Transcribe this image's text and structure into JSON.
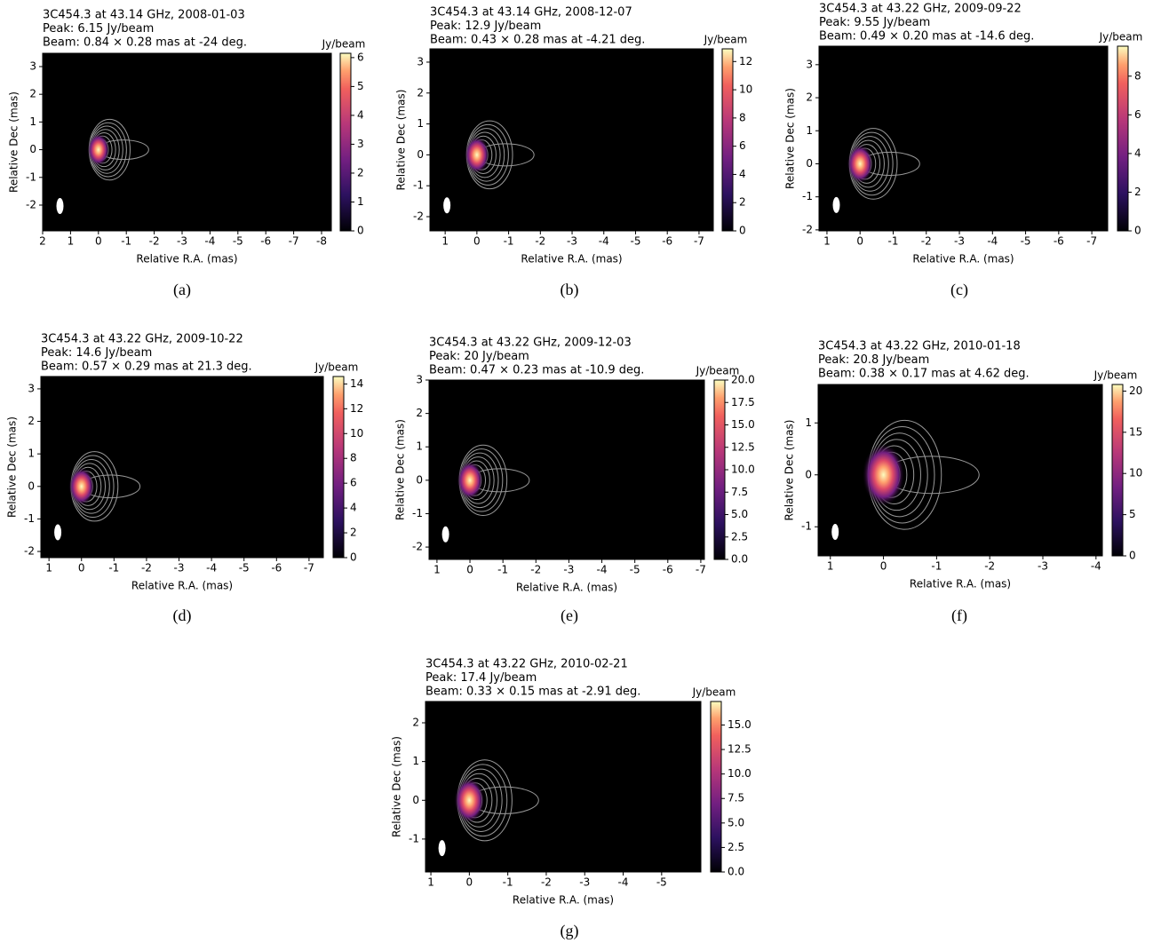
{
  "chart_data": [
    {
      "type": "image",
      "title": [
        "3C454.3 at 43.14 GHz, 2008-01-03",
        "Peak: 6.15 Jy/beam",
        "Beam: 0.84 × 0.28 mas at -24 deg."
      ],
      "xlabel": "Relative R.A. (mas)",
      "ylabel": "Relative Dec (mas)",
      "xlim": [
        2,
        -8.35
      ],
      "xticks": [
        2,
        1,
        0,
        -1,
        -2,
        -3,
        -4,
        -5,
        -6,
        -7,
        -8
      ],
      "ylim": [
        -2.93,
        3.48
      ],
      "yticks": [
        -2,
        -1,
        0,
        1,
        2,
        3
      ],
      "colorbar_label": "Jy/beam",
      "clim": [
        0,
        6.15
      ],
      "cticks": [
        0,
        1,
        2,
        3,
        4,
        5,
        6
      ],
      "caption": "(a)"
    },
    {
      "type": "image",
      "title": [
        "3C454.3 at 43.14 GHz, 2008-12-07",
        "Peak: 12.9 Jy/beam",
        "Beam: 0.43 × 0.28 mas at -4.21 deg."
      ],
      "xlabel": "Relative R.A. (mas)",
      "ylabel": "Relative Dec (mas)",
      "xlim": [
        1.48,
        -7.45
      ],
      "xticks": [
        1,
        0,
        -1,
        -2,
        -3,
        -4,
        -5,
        -6,
        -7
      ],
      "ylim": [
        -2.46,
        3.43
      ],
      "yticks": [
        -2,
        -1,
        0,
        1,
        2,
        3
      ],
      "colorbar_label": "Jy/beam",
      "clim": [
        0,
        12.9
      ],
      "cticks": [
        0,
        2,
        4,
        6,
        8,
        10,
        12
      ],
      "caption": "(b)"
    },
    {
      "type": "image",
      "title": [
        "3C454.3 at 43.22 GHz, 2009-09-22",
        "Peak: 9.55 Jy/beam",
        "Beam: 0.49 × 0.20 mas at -14.6 deg."
      ],
      "xlabel": "Relative R.A. (mas)",
      "ylabel": "Relative Dec (mas)",
      "xlim": [
        1.24,
        -7.48
      ],
      "xticks": [
        1,
        0,
        -1,
        -2,
        -3,
        -4,
        -5,
        -6,
        -7
      ],
      "ylim": [
        -2.03,
        3.56
      ],
      "yticks": [
        -2,
        -1,
        0,
        1,
        2,
        3
      ],
      "colorbar_label": "Jy/beam",
      "clim": [
        0,
        9.55
      ],
      "cticks": [
        0,
        2,
        4,
        6,
        8
      ],
      "caption": "(c)"
    },
    {
      "type": "image",
      "title": [
        "3C454.3 at 43.22 GHz, 2009-10-22",
        "Peak: 14.6 Jy/beam",
        "Beam: 0.57 × 0.29 mas at 21.3 deg."
      ],
      "xlabel": "Relative R.A. (mas)",
      "ylabel": "Relative Dec (mas)",
      "xlim": [
        1.25,
        -7.44
      ],
      "xticks": [
        1,
        0,
        -1,
        -2,
        -3,
        -4,
        -5,
        -6,
        -7
      ],
      "ylim": [
        -2.19,
        3.38
      ],
      "yticks": [
        -2,
        -1,
        0,
        1,
        2,
        3
      ],
      "colorbar_label": "Jy/beam",
      "clim": [
        0,
        14.6
      ],
      "cticks": [
        0,
        2,
        4,
        6,
        8,
        10,
        12,
        14
      ],
      "caption": "(d)"
    },
    {
      "type": "image",
      "title": [
        "3C454.3 at 43.22 GHz, 2009-12-03",
        "Peak: 20 Jy/beam",
        "Beam: 0.47 × 0.23 mas at -10.9 deg."
      ],
      "xlabel": "Relative R.A. (mas)",
      "ylabel": "Relative Dec (mas)",
      "xlim": [
        1.24,
        -7.11
      ],
      "xticks": [
        1,
        0,
        -1,
        -2,
        -3,
        -4,
        -5,
        -6,
        -7
      ],
      "ylim": [
        -2.37,
        3.0
      ],
      "yticks": [
        -2,
        -1,
        0,
        1,
        2,
        3
      ],
      "colorbar_label": "Jy/beam",
      "clim": [
        0,
        20
      ],
      "cticks": [
        {
          "value": 0,
          "label": "0.0"
        },
        2.5,
        {
          "value": 5,
          "label": "5.0"
        },
        7.5,
        {
          "value": 10,
          "label": "10.0"
        },
        12.5,
        {
          "value": 15,
          "label": "15.0"
        },
        17.5,
        {
          "value": 20,
          "label": "20.0"
        }
      ],
      "caption": "(e)"
    },
    {
      "type": "image",
      "title": [
        "3C454.3 at 43.22 GHz, 2010-01-18",
        "Peak: 20.8 Jy/beam",
        "Beam: 0.38 × 0.17 mas at 4.62 deg."
      ],
      "xlabel": "Relative R.A. (mas)",
      "ylabel": "Relative Dec (mas)",
      "xlim": [
        1.23,
        -4.12
      ],
      "xticks": [
        1,
        0,
        -1,
        -2,
        -3,
        -4
      ],
      "ylim": [
        -1.56,
        1.74
      ],
      "yticks": [
        -1,
        0,
        1
      ],
      "colorbar_label": "Jy/beam",
      "clim": [
        0,
        20.8
      ],
      "cticks": [
        0,
        5,
        10,
        15,
        20
      ],
      "caption": "(f)"
    },
    {
      "type": "image",
      "title": [
        "3C454.3 at 43.22 GHz, 2010-02-21",
        "Peak: 17.4 Jy/beam",
        "Beam: 0.33 × 0.15 mas at -2.91 deg."
      ],
      "xlabel": "Relative R.A. (mas)",
      "ylabel": "Relative Dec (mas)",
      "xlim": [
        1.14,
        -6.02
      ],
      "xticks": [
        1,
        0,
        -1,
        -2,
        -3,
        -4,
        -5
      ],
      "ylim": [
        -1.85,
        2.55
      ],
      "yticks": [
        -1,
        0,
        1,
        2
      ],
      "colorbar_label": "Jy/beam",
      "clim": [
        0,
        17.4
      ],
      "cticks": [
        {
          "value": 0,
          "label": "0.0"
        },
        2.5,
        {
          "value": 5,
          "label": "5.0"
        },
        7.5,
        {
          "value": 10,
          "label": "10.0"
        },
        12.5,
        {
          "value": 15,
          "label": "15.0"
        }
      ],
      "caption": "(g)"
    }
  ]
}
